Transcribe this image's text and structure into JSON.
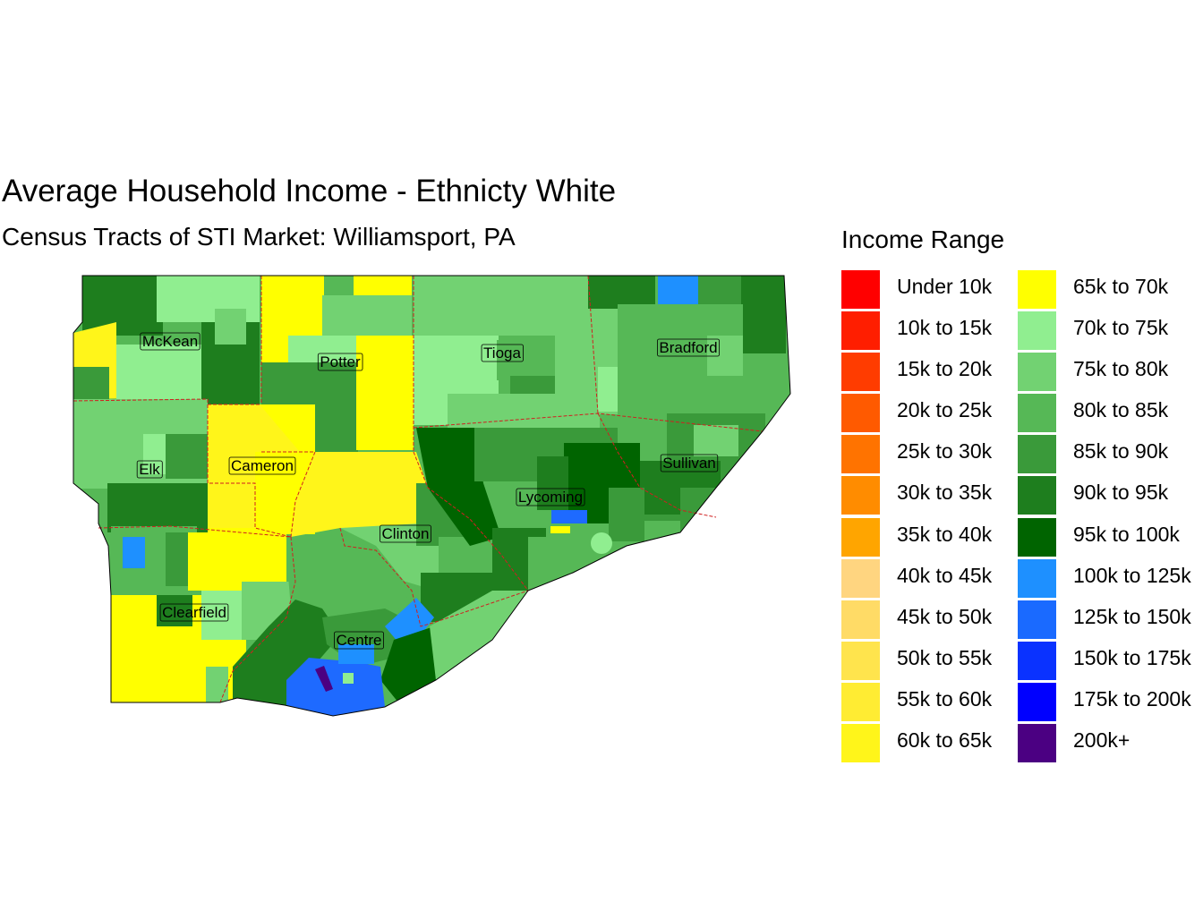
{
  "title": "Average Household Income - Ethnicty White",
  "subtitle": "Census Tracts of STI Market: Williamsport, PA",
  "legend": {
    "title": "Income Range",
    "items": [
      {
        "label": "Under 10k",
        "color": "#ff0000"
      },
      {
        "label": "10k to 15k",
        "color": "#ff1e00"
      },
      {
        "label": "15k to 20k",
        "color": "#ff3c00"
      },
      {
        "label": "20k to 25k",
        "color": "#ff5a00"
      },
      {
        "label": "25k to 30k",
        "color": "#ff7300"
      },
      {
        "label": "30k to 35k",
        "color": "#ff8c00"
      },
      {
        "label": "35k to 40k",
        "color": "#ffa500"
      },
      {
        "label": "40k to 45k",
        "color": "#ffd580"
      },
      {
        "label": "45k to 50k",
        "color": "#ffdb66"
      },
      {
        "label": "50k to 55k",
        "color": "#ffe44d"
      },
      {
        "label": "55k to 60k",
        "color": "#ffec33"
      },
      {
        "label": "60k to 65k",
        "color": "#fff51a"
      },
      {
        "label": "65k to 70k",
        "color": "#ffff00"
      },
      {
        "label": "70k to 75k",
        "color": "#90ee90"
      },
      {
        "label": "75k to 80k",
        "color": "#72d272"
      },
      {
        "label": "80k to 85k",
        "color": "#56b856"
      },
      {
        "label": "85k to 90k",
        "color": "#3a9a3a"
      },
      {
        "label": "90k to 95k",
        "color": "#1e7e1e"
      },
      {
        "label": "95k to 100k",
        "color": "#006400"
      },
      {
        "label": "100k to 125k",
        "color": "#1e90ff"
      },
      {
        "label": "125k to 150k",
        "color": "#1a6aff"
      },
      {
        "label": "150k to 175k",
        "color": "#0a32ff"
      },
      {
        "label": "175k to 200k",
        "color": "#0000ff"
      },
      {
        "label": "200k+",
        "color": "#4b0082"
      }
    ]
  },
  "counties": [
    {
      "name": "McKean"
    },
    {
      "name": "Potter"
    },
    {
      "name": "Tioga"
    },
    {
      "name": "Bradford"
    },
    {
      "name": "Elk"
    },
    {
      "name": "Cameron"
    },
    {
      "name": "Sullivan"
    },
    {
      "name": "Lycoming"
    },
    {
      "name": "Clinton"
    },
    {
      "name": "Clearfield"
    },
    {
      "name": "Centre"
    }
  ]
}
